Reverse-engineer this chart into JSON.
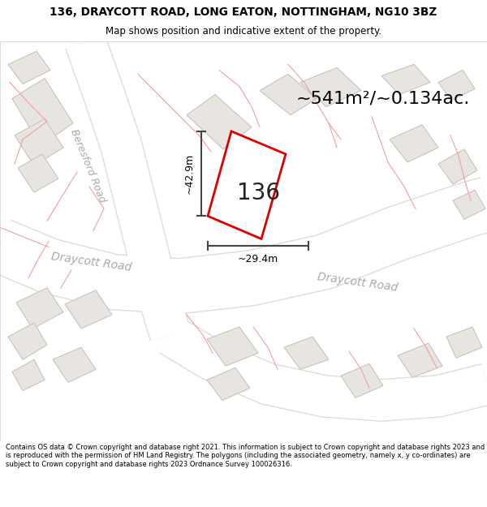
{
  "title_line1": "136, DRAYCOTT ROAD, LONG EATON, NOTTINGHAM, NG10 3BZ",
  "title_line2": "Map shows position and indicative extent of the property.",
  "area_text": "~541m²/~0.134ac.",
  "label_136": "136",
  "dim_width": "~29.4m",
  "dim_height": "~42.9m",
  "footer": "Contains OS data © Crown copyright and database right 2021. This information is subject to Crown copyright and database rights 2023 and is reproduced with the permission of HM Land Registry. The polygons (including the associated geometry, namely x, y co-ordinates) are subject to Crown copyright and database rights 2023 Ordnance Survey 100026316.",
  "bg_color": "#ffffff",
  "map_bg": "#f5f3f0",
  "road_color": "#ffffff",
  "road_border": "#e0dcd5",
  "highlight_color": "#dd0000",
  "pink_color": "#f0a0a0",
  "building_fill": "#e8e4e0",
  "building_edge": "#c8c4be",
  "text_color": "#222222",
  "road_label_color": "#aaaaaa",
  "dim_line_color": "#444444"
}
